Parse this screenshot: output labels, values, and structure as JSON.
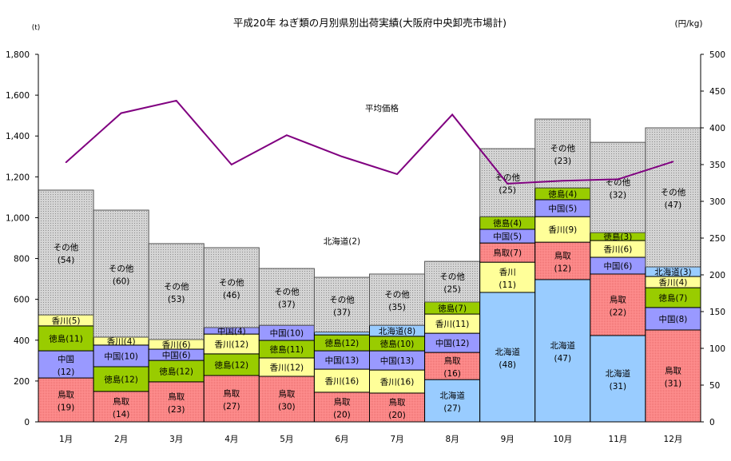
{
  "chart_data": {
    "type": "bar",
    "stacked": true,
    "title": "平成20年 ねぎ類の月別県別出荷実績(大阪府中央卸売市場計)",
    "ylabel": "(t)",
    "y2label": "(円/kg)",
    "ylim": [
      0,
      1800
    ],
    "y2lim": [
      0,
      500
    ],
    "yticks": [
      "0",
      "200",
      "400",
      "600",
      "800",
      "1,000",
      "1,200",
      "1,400",
      "1,600",
      "1,800"
    ],
    "y2ticks": [
      "0",
      "50",
      "100",
      "150",
      "200",
      "250",
      "300",
      "350",
      "400",
      "450",
      "500"
    ],
    "categories": [
      "1月",
      "2月",
      "3月",
      "4月",
      "5月",
      "6月",
      "7月",
      "8月",
      "9月",
      "10月",
      "11月",
      "12月"
    ],
    "colors": {
      "鳥取": "#ff8080",
      "中国": "#9999ff",
      "徳島": "#99cc00",
      "香川": "#ffff99",
      "北海道": "#99ccff",
      "その他": "#c0c0c0",
      "price": "#800080"
    },
    "bars": [
      [
        {
          "name": "鳥取",
          "value": 215,
          "pct": "19"
        },
        {
          "name": "中国",
          "value": 133,
          "pct": "12"
        },
        {
          "name": "徳島",
          "value": 122,
          "pct": "11"
        },
        {
          "name": "香川",
          "value": 54,
          "pct": "5"
        },
        {
          "name": "その他",
          "value": 611,
          "pct": "54"
        }
      ],
      [
        {
          "name": "鳥取",
          "value": 149,
          "pct": "14"
        },
        {
          "name": "徳島",
          "value": 121,
          "pct": "12"
        },
        {
          "name": "中国",
          "value": 106,
          "pct": "10"
        },
        {
          "name": "香川",
          "value": 39,
          "pct": "4"
        },
        {
          "name": "その他",
          "value": 622,
          "pct": "60"
        }
      ],
      [
        {
          "name": "鳥取",
          "value": 196,
          "pct": "23"
        },
        {
          "name": "徳島",
          "value": 105,
          "pct": "12"
        },
        {
          "name": "中国",
          "value": 55,
          "pct": "6"
        },
        {
          "name": "香川",
          "value": 47,
          "pct": "6"
        },
        {
          "name": "その他",
          "value": 470,
          "pct": "53"
        }
      ],
      [
        {
          "name": "鳥取",
          "value": 227,
          "pct": "27"
        },
        {
          "name": "徳島",
          "value": 106,
          "pct": "12"
        },
        {
          "name": "香川",
          "value": 97,
          "pct": "12"
        },
        {
          "name": "中国",
          "value": 32,
          "pct": "4"
        },
        {
          "name": "その他",
          "value": 391,
          "pct": "46"
        }
      ],
      [
        {
          "name": "鳥取",
          "value": 223,
          "pct": "30"
        },
        {
          "name": "香川",
          "value": 90,
          "pct": "12"
        },
        {
          "name": "徳島",
          "value": 86,
          "pct": "11"
        },
        {
          "name": "中国",
          "value": 74,
          "pct": "10"
        },
        {
          "name": "その他",
          "value": 278,
          "pct": "37"
        }
      ],
      [
        {
          "name": "鳥取",
          "value": 145,
          "pct": "20"
        },
        {
          "name": "香川",
          "value": 113,
          "pct": "16"
        },
        {
          "name": "中国",
          "value": 90,
          "pct": "13"
        },
        {
          "name": "徳島",
          "value": 78,
          "pct": "12"
        },
        {
          "name": "北海道",
          "value": 14,
          "pct": "2",
          "outside": true
        },
        {
          "name": "その他",
          "value": 268,
          "pct": "37"
        }
      ],
      [
        {
          "name": "鳥取",
          "value": 141,
          "pct": "20"
        },
        {
          "name": "香川",
          "value": 113,
          "pct": "16"
        },
        {
          "name": "中国",
          "value": 94,
          "pct": "13"
        },
        {
          "name": "徳島",
          "value": 71,
          "pct": "10"
        },
        {
          "name": "北海道",
          "value": 54,
          "pct": "8"
        },
        {
          "name": "その他",
          "value": 251,
          "pct": "35"
        }
      ],
      [
        {
          "name": "北海道",
          "value": 207,
          "pct": "27"
        },
        {
          "name": "鳥取",
          "value": 133,
          "pct": "16"
        },
        {
          "name": "中国",
          "value": 94,
          "pct": "12"
        },
        {
          "name": "香川",
          "value": 94,
          "pct": "11"
        },
        {
          "name": "徳島",
          "value": 59,
          "pct": "7"
        },
        {
          "name": "その他",
          "value": 199,
          "pct": "25"
        }
      ],
      [
        {
          "name": "北海道",
          "value": 634,
          "pct": "48"
        },
        {
          "name": "香川",
          "value": 148,
          "pct": "11"
        },
        {
          "name": "鳥取",
          "value": 94,
          "pct": "7"
        },
        {
          "name": "中国",
          "value": 67,
          "pct": "5"
        },
        {
          "name": "徳島",
          "value": 62,
          "pct": "4"
        },
        {
          "name": "その他",
          "value": 333,
          "pct": "25"
        }
      ],
      [
        {
          "name": "北海道",
          "value": 697,
          "pct": "47"
        },
        {
          "name": "鳥取",
          "value": 183,
          "pct": "12"
        },
        {
          "name": "香川",
          "value": 125,
          "pct": "9"
        },
        {
          "name": "中国",
          "value": 83,
          "pct": "5"
        },
        {
          "name": "徳島",
          "value": 58,
          "pct": "4"
        },
        {
          "name": "その他",
          "value": 337,
          "pct": "23"
        }
      ],
      [
        {
          "name": "北海道",
          "value": 423,
          "pct": "31"
        },
        {
          "name": "鳥取",
          "value": 301,
          "pct": "22"
        },
        {
          "name": "中国",
          "value": 82,
          "pct": "6"
        },
        {
          "name": "香川",
          "value": 82,
          "pct": "6"
        },
        {
          "name": "徳島",
          "value": 39,
          "pct": "3"
        },
        {
          "name": "その他",
          "value": 442,
          "pct": "32"
        }
      ],
      [
        {
          "name": "鳥取",
          "value": 450,
          "pct": "31"
        },
        {
          "name": "中国",
          "value": 110,
          "pct": "8"
        },
        {
          "name": "徳島",
          "value": 97,
          "pct": "7"
        },
        {
          "name": "香川",
          "value": 55,
          "pct": "4"
        },
        {
          "name": "北海道",
          "value": 47,
          "pct": "3"
        },
        {
          "name": "その他",
          "value": 681,
          "pct": "47"
        }
      ]
    ],
    "line": {
      "name": "平均価格",
      "axis": "right",
      "values": [
        353,
        420,
        437,
        350,
        390,
        361,
        337,
        418,
        324,
        328,
        330,
        354
      ]
    },
    "legend": "inline-labels"
  }
}
